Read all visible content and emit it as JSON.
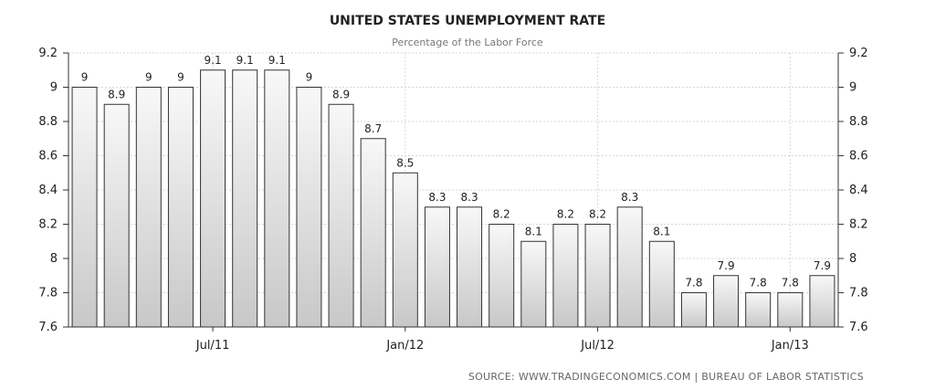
{
  "chart_data": {
    "type": "bar",
    "title": "UNITED STATES UNEMPLOYMENT RATE",
    "subtitle": "Percentage of the Labor Force",
    "source": "SOURCE:  WWW.TRADINGECONOMICS.COM  |  BUREAU  OF  LABOR  STATISTICS",
    "values": [
      9,
      8.9,
      9,
      9,
      9.1,
      9.1,
      9.1,
      9,
      8.9,
      8.7,
      8.5,
      8.3,
      8.3,
      8.2,
      8.1,
      8.2,
      8.2,
      8.3,
      8.1,
      7.8,
      7.9,
      7.8,
      7.8,
      7.9
    ],
    "data_labels": [
      "9",
      "8.9",
      "9",
      "9",
      "9.1",
      "9.1",
      "9.1",
      "9",
      "8.9",
      "8.7",
      "8.5",
      "8.3",
      "8.3",
      "8.2",
      "8.1",
      "8.2",
      "8.2",
      "8.3",
      "8.1",
      "7.8",
      "7.9",
      "7.8",
      "7.8",
      "7.9"
    ],
    "ylim": [
      7.6,
      9.2
    ],
    "y_ticks": [
      7.6,
      7.8,
      8,
      8.2,
      8.4,
      8.6,
      8.8,
      9,
      9.2
    ],
    "y_tick_labels": [
      "7.6",
      "7.8",
      "8",
      "8.2",
      "8.4",
      "8.6",
      "8.8",
      "9",
      "9.2"
    ],
    "x_ticks": [
      {
        "index": 4,
        "label": "Jul/11"
      },
      {
        "index": 10,
        "label": "Jan/12"
      },
      {
        "index": 16,
        "label": "Jul/12"
      },
      {
        "index": 22,
        "label": "Jan/13"
      }
    ],
    "grid": true,
    "axes": "left-and-right",
    "colors": {
      "bar_top": "#f8f8f8",
      "bar_bottom": "#c8c8c8",
      "bar_stroke": "#333333",
      "grid": "#d6d6d6",
      "axis": "#333333"
    }
  }
}
